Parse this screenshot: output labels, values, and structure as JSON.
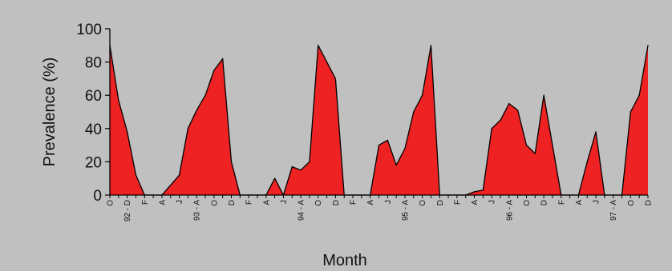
{
  "chart_data": {
    "type": "area",
    "xlabel": "Month",
    "ylabel": "Prevalence (%)",
    "ylim": [
      0,
      100
    ],
    "y_ticks": [
      0,
      20,
      40,
      60,
      80,
      100
    ],
    "grid": false,
    "legend": "none",
    "colors": {
      "background": "#c0c0c0",
      "fill": "#ee2222",
      "line": "#000000"
    },
    "x_tick_labels": [
      "O",
      "92 - D",
      "F",
      "A",
      "J",
      "93 - A",
      "O",
      "D",
      "F",
      "A",
      "J",
      "94 - A",
      "O",
      "D",
      "F",
      "A",
      "J",
      "95 - A",
      "O",
      "D",
      "F",
      "A",
      "J",
      "96 - A",
      "O",
      "D",
      "F",
      "A",
      "J",
      "97 - A",
      "O",
      "D"
    ],
    "series": [
      {
        "x_index": [
          0,
          1,
          2,
          3,
          4,
          5,
          6,
          7,
          8,
          9,
          10,
          11,
          12,
          13,
          14,
          15,
          16,
          17,
          18,
          19,
          20,
          21,
          22,
          23,
          24,
          25,
          26,
          27,
          28,
          29,
          30,
          31,
          32,
          33,
          34,
          35,
          36,
          37,
          38,
          39,
          40,
          41,
          42,
          43,
          44,
          45,
          46,
          47,
          48,
          49,
          50,
          51,
          52,
          53,
          54,
          55,
          56,
          57,
          58,
          59,
          60,
          61,
          62
        ],
        "values": [
          90,
          57,
          38,
          12,
          0,
          0,
          0,
          6,
          12,
          40,
          51,
          60,
          75,
          82,
          20,
          0,
          0,
          0,
          0,
          10,
          0,
          17,
          15,
          20,
          90,
          80,
          70,
          0,
          0,
          0,
          0,
          30,
          33,
          18,
          28,
          50,
          60,
          90,
          0,
          0,
          0,
          0,
          2,
          3,
          40,
          45,
          55,
          51,
          30,
          25,
          60,
          30,
          0,
          0,
          0,
          20,
          38,
          0,
          0,
          0,
          50,
          60,
          90
        ]
      }
    ]
  }
}
